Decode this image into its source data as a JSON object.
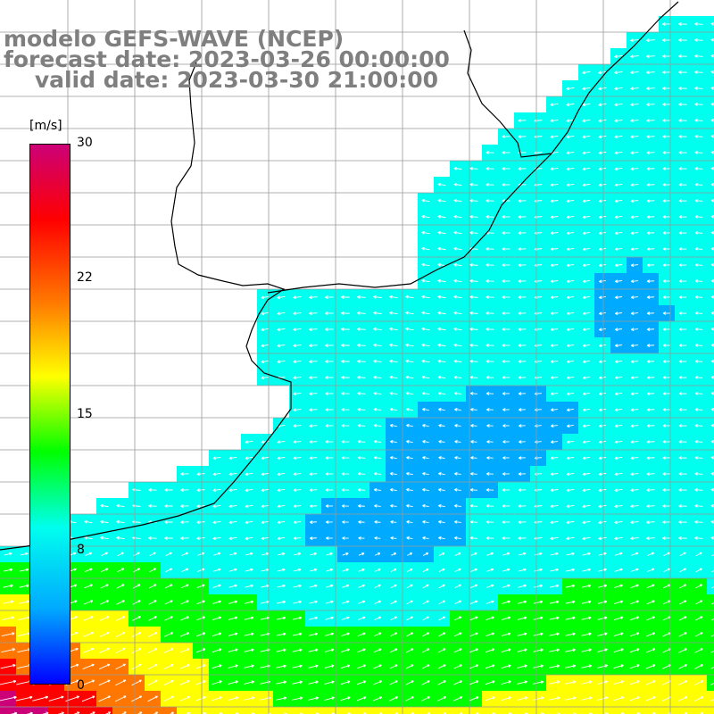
{
  "header": {
    "line1": "modelo GEFS-WAVE (NCEP)",
    "line2": "forecast date: 2023-03-26 00:00:00",
    "line3": "    valid date: 2023-03-30 21:00:00"
  },
  "colorbar": {
    "unit": "[m/s]",
    "ticks": [
      "30",
      "22",
      "15",
      "8",
      "0"
    ],
    "tick_values": [
      30,
      22,
      15,
      8,
      0
    ],
    "colors": [
      "#0000ff",
      "#00aaff",
      "#00ffee",
      "#00ff00",
      "#ffff00",
      "#ff7700",
      "#ff0000",
      "#cc0077"
    ]
  },
  "map": {
    "land_color": "#ffffff",
    "grid_color": "#999999",
    "coast_color": "#000000"
  }
}
